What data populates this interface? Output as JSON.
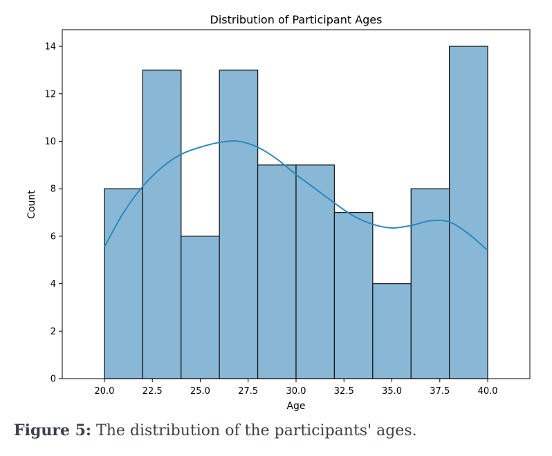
{
  "chart_data": {
    "type": "bar",
    "title": "Distribution of Participant Ages",
    "xlabel": "Age",
    "ylabel": "Count",
    "bin_edges": [
      20,
      22,
      24,
      26,
      28,
      30,
      32,
      34,
      36,
      38,
      40
    ],
    "values": [
      8,
      13,
      6,
      13,
      9,
      9,
      7,
      4,
      8,
      14
    ],
    "xlim": [
      17.8,
      42.2
    ],
    "ylim": [
      0,
      14.7
    ],
    "x_ticks": [
      20.0,
      22.5,
      25.0,
      27.5,
      30.0,
      32.5,
      35.0,
      37.5,
      40.0
    ],
    "x_tick_labels": [
      "20.0",
      "22.5",
      "25.0",
      "27.5",
      "30.0",
      "32.5",
      "35.0",
      "37.5",
      "40.0"
    ],
    "y_ticks": [
      0,
      2,
      4,
      6,
      8,
      10,
      12,
      14
    ],
    "y_tick_labels": [
      "0",
      "2",
      "4",
      "6",
      "8",
      "10",
      "12",
      "14"
    ],
    "kde": {
      "x": [
        20,
        21,
        22,
        23,
        24,
        25,
        26,
        27,
        28,
        29,
        30,
        31,
        32,
        33,
        34,
        35,
        36,
        37,
        38,
        39,
        40
      ],
      "y": [
        5.55,
        7.0,
        8.1,
        8.9,
        9.45,
        9.75,
        9.95,
        10.0,
        9.75,
        9.25,
        8.6,
        8.0,
        7.4,
        6.85,
        6.5,
        6.35,
        6.45,
        6.65,
        6.6,
        6.1,
        5.4
      ]
    },
    "grid": false,
    "colors": {
      "bar_fill": "#88b8d6",
      "bar_edge": "#1a1a1a",
      "kde_line": "#2c87bf"
    }
  },
  "caption": {
    "label": "Figure 5:",
    "text": " The distribution of the participants' ages."
  }
}
